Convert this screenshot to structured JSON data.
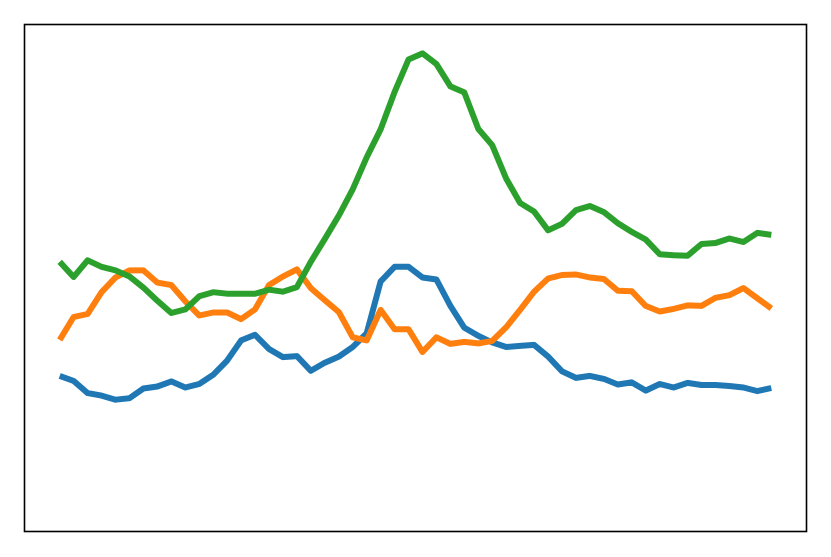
{
  "chart_data": {
    "type": "line",
    "title": "",
    "xlabel": "",
    "ylabel": "",
    "x_ticks_visible": false,
    "y_ticks_visible": false,
    "grid": false,
    "legend": "none",
    "xlim": [
      0,
      51
    ],
    "ylim": [
      0,
      100
    ],
    "x": [
      0,
      1,
      2,
      3,
      4,
      5,
      6,
      7,
      8,
      9,
      10,
      11,
      12,
      13,
      14,
      15,
      16,
      17,
      18,
      19,
      20,
      21,
      22,
      23,
      24,
      25,
      26,
      27,
      28,
      29,
      30,
      31,
      32,
      33,
      34,
      35,
      36,
      37,
      38,
      39,
      40,
      41,
      42,
      43,
      44,
      45,
      46,
      47,
      48,
      49,
      50,
      51
    ],
    "series": [
      {
        "color": "#1f77b4",
        "values": [
          30.7,
          29.7,
          27.3,
          26.8,
          26,
          26.3,
          28.2,
          28.6,
          29.6,
          28.4,
          29.1,
          30.9,
          33.7,
          37.7,
          38.8,
          36,
          34.4,
          34.6,
          31.7,
          33.3,
          34.5,
          36.4,
          39.1,
          49.3,
          52.2,
          52.2,
          50.1,
          49.7,
          44.5,
          40.2,
          38.6,
          37.3,
          36.4,
          36.6,
          36.8,
          34.5,
          31.6,
          30.3,
          30.7,
          30.1,
          29,
          29.4,
          27.8,
          29.1,
          28.4,
          29.3,
          28.9,
          28.9,
          28.7,
          28.4,
          27.7,
          28.3
        ]
      },
      {
        "color": "#ff7f0e",
        "values": [
          37.8,
          42.3,
          42.9,
          47.2,
          50.1,
          51.5,
          51.5,
          49.1,
          48.6,
          45.4,
          42.6,
          43.2,
          43.2,
          41.9,
          43.8,
          48.6,
          50.3,
          51.7,
          48,
          45.6,
          43.3,
          38.3,
          37.7,
          43.7,
          39.9,
          39.9,
          35.4,
          38.3,
          37,
          37.4,
          37.1,
          37.6,
          40.3,
          43.7,
          47.3,
          49.9,
          50.6,
          50.7,
          50.1,
          49.8,
          47.5,
          47.4,
          44.5,
          43.4,
          43.9,
          44.6,
          44.5,
          46.1,
          46.6,
          48,
          46,
          44
        ]
      },
      {
        "color": "#2ca02c",
        "values": [
          53.2,
          50.2,
          53.5,
          52.2,
          51.5,
          50.3,
          48.1,
          45.5,
          43.1,
          43.8,
          46.4,
          47.2,
          46.9,
          46.9,
          46.9,
          47.7,
          47.3,
          48.2,
          53.2,
          57.7,
          62.3,
          67.5,
          73.8,
          79.3,
          86.7,
          93.1,
          94.3,
          92.2,
          87.8,
          86.6,
          79.4,
          76.2,
          69.6,
          64.8,
          63.1,
          59.4,
          60.7,
          63.4,
          64.2,
          63,
          60.8,
          59.1,
          57.6,
          54.7,
          54.5,
          54.4,
          56.7,
          56.9,
          57.8,
          57.1,
          58.9,
          58.5
        ]
      }
    ]
  }
}
